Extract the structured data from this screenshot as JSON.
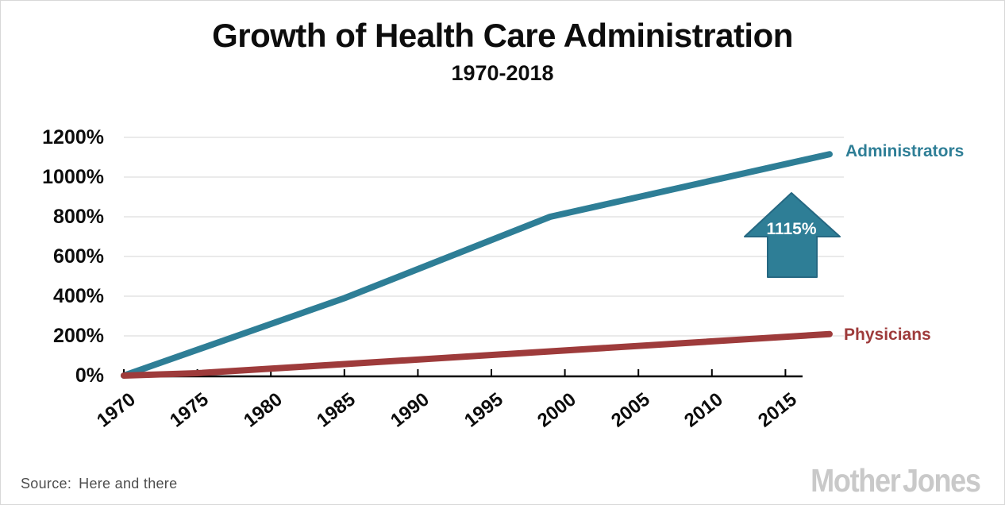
{
  "chart_data": {
    "type": "line",
    "title": "Growth of Health Care Administration",
    "subtitle": "1970-2018",
    "grid": "horizontal",
    "legend": "inline-end-labels",
    "x_axis": {
      "range": [
        1970,
        2018
      ],
      "tick_years": [
        1970,
        1975,
        1980,
        1985,
        1990,
        1995,
        2000,
        2005,
        2010,
        2015
      ]
    },
    "y_axis": {
      "range": [
        0,
        1200
      ],
      "unit": "%",
      "tick_values": [
        0,
        200,
        400,
        600,
        800,
        1000,
        1200
      ]
    },
    "series": [
      {
        "name": "Administrators",
        "color": "#2E7E96",
        "points": [
          [
            1970,
            0
          ],
          [
            1985,
            390
          ],
          [
            1999,
            800
          ],
          [
            2018,
            1115
          ]
        ]
      },
      {
        "name": "Physicians",
        "color": "#9E3B3B",
        "points": [
          [
            1970,
            0
          ],
          [
            1975,
            12
          ],
          [
            2018,
            209
          ]
        ]
      }
    ],
    "annotation": {
      "text": "1115%",
      "shape": "up-arrow",
      "color": "#2E7E96"
    }
  },
  "source": {
    "label": "Source:",
    "text": "Here and there"
  },
  "logo": {
    "part1": "Mother",
    "part2": "Jones"
  },
  "colors": {
    "admin": "#2E7E96",
    "physicians": "#9E3B3B",
    "gridline": "#e4e4e4",
    "axis": "#000000",
    "arrow_fill": "#2E7E96",
    "arrow_stroke": "#266882",
    "title_text": "#0d0d0d",
    "source_text": "#4d4d4d",
    "logo_text": "#c9c9c9",
    "background": "#ffffff"
  }
}
